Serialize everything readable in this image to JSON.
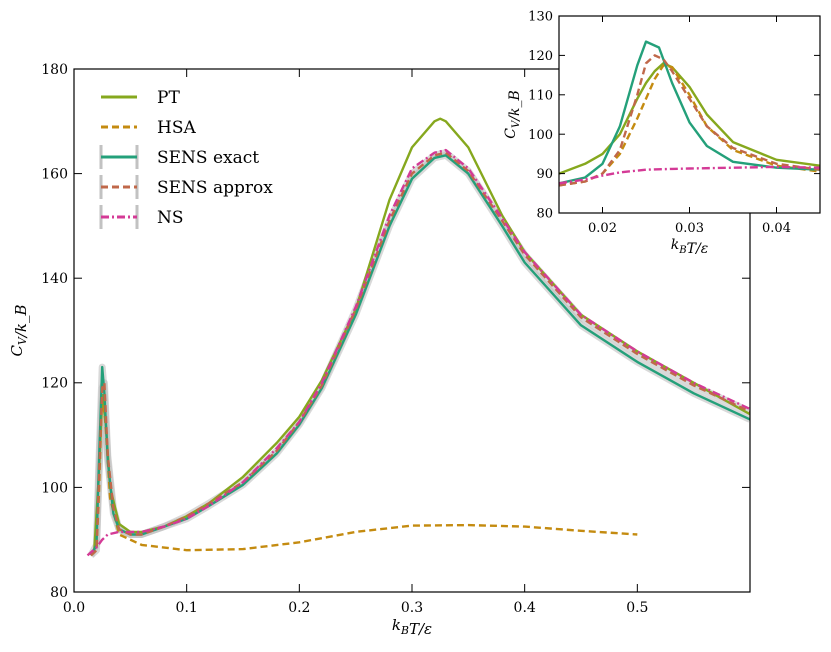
{
  "chart_data": [
    {
      "type": "line",
      "panel": "main",
      "xlabel": "k_B T/ε",
      "ylabel": "C_V/k_B",
      "xlim": [
        0.0,
        0.6
      ],
      "ylim": [
        80,
        180
      ],
      "xticks": [
        0.0,
        0.1,
        0.2,
        0.3,
        0.4,
        0.5
      ],
      "xtick_labels": [
        "0.0",
        "0.1",
        "0.2",
        "0.3",
        "0.4",
        "0.5"
      ],
      "yticks": [
        80,
        100,
        120,
        140,
        160,
        180
      ],
      "ytick_labels": [
        "80",
        "100",
        "120",
        "140",
        "160",
        "180"
      ],
      "grid": false,
      "legend_position": "top-left",
      "series": [
        {
          "name": "PT",
          "color": "#86a81e",
          "style": "solid",
          "x": [
            0.018,
            0.022,
            0.025,
            0.028,
            0.032,
            0.04,
            0.05,
            0.06,
            0.08,
            0.1,
            0.12,
            0.15,
            0.18,
            0.2,
            0.22,
            0.25,
            0.28,
            0.3,
            0.32,
            0.325,
            0.33,
            0.35,
            0.38,
            0.4,
            0.45,
            0.5,
            0.55,
            0.6
          ],
          "y": [
            88,
            102,
            117,
            113,
            100,
            93,
            91.5,
            91.5,
            92.5,
            94.5,
            97,
            102,
            108.5,
            113.5,
            120.5,
            134,
            155,
            165,
            170,
            170.5,
            170,
            165,
            152,
            145,
            133,
            126,
            120,
            114
          ]
        },
        {
          "name": "HSA",
          "color": "#c48b10",
          "style": "dashed",
          "x": [
            0.015,
            0.02,
            0.022,
            0.025,
            0.028,
            0.032,
            0.04,
            0.06,
            0.1,
            0.15,
            0.2,
            0.25,
            0.3,
            0.35,
            0.4,
            0.45,
            0.5
          ],
          "y": [
            87,
            88,
            98,
            119,
            112,
            98,
            91,
            89,
            88,
            88.2,
            89.5,
            91.5,
            92.7,
            92.8,
            92.5,
            91.7,
            91
          ]
        },
        {
          "name": "SENS exact",
          "color": "#24a07a",
          "style": "solid",
          "x": [
            0.015,
            0.02,
            0.022,
            0.025,
            0.027,
            0.03,
            0.035,
            0.04,
            0.05,
            0.06,
            0.08,
            0.1,
            0.12,
            0.15,
            0.18,
            0.2,
            0.22,
            0.25,
            0.28,
            0.3,
            0.32,
            0.33,
            0.35,
            0.38,
            0.4,
            0.45,
            0.5,
            0.55,
            0.6
          ],
          "y": [
            87,
            89,
            104,
            123,
            118,
            105,
            95,
            92,
            91,
            91,
            92.5,
            94,
            96.5,
            100.5,
            106.5,
            112,
            119,
            133,
            150,
            159,
            163,
            163.5,
            160,
            150,
            143,
            131,
            124,
            118,
            113
          ]
        },
        {
          "name": "SENS approx",
          "color": "#c0684a",
          "style": "dashed",
          "x": [
            0.015,
            0.02,
            0.022,
            0.025,
            0.027,
            0.03,
            0.035,
            0.04,
            0.05,
            0.06,
            0.08,
            0.1,
            0.12,
            0.15,
            0.18,
            0.2,
            0.22,
            0.25,
            0.28,
            0.3,
            0.32,
            0.33,
            0.35,
            0.38,
            0.4,
            0.45,
            0.5,
            0.55,
            0.6
          ],
          "y": [
            87,
            88,
            101,
            119,
            120,
            106,
            96,
            92,
            91,
            91,
            92.5,
            94.5,
            97,
            101,
            107,
            112.5,
            119.5,
            134,
            151,
            160,
            163.5,
            164,
            160.5,
            151,
            144.5,
            132.5,
            125.5,
            119.5,
            114.5
          ]
        },
        {
          "name": "NS",
          "color": "#d43a96",
          "style": "dashdot",
          "x": [
            0.012,
            0.02,
            0.025,
            0.03,
            0.04,
            0.05,
            0.06,
            0.08,
            0.1,
            0.12,
            0.15,
            0.18,
            0.2,
            0.22,
            0.25,
            0.28,
            0.3,
            0.32,
            0.33,
            0.35,
            0.38,
            0.4,
            0.45,
            0.5,
            0.55,
            0.6
          ],
          "y": [
            87,
            88.5,
            90,
            91,
            91.5,
            91.5,
            91.5,
            92.5,
            94,
            96.5,
            101,
            107.5,
            112.5,
            120,
            134.5,
            152,
            161,
            164,
            164.5,
            161,
            151.5,
            145,
            133,
            126,
            120,
            115
          ]
        }
      ]
    },
    {
      "type": "line",
      "panel": "inset",
      "xlabel": "k_B T/ε",
      "ylabel": "C_V/k_B",
      "xlim": [
        0.015,
        0.045
      ],
      "ylim": [
        80,
        130
      ],
      "xticks": [
        0.02,
        0.03,
        0.04
      ],
      "xtick_labels": [
        "0.02",
        "0.03",
        "0.04"
      ],
      "yticks": [
        80,
        90,
        100,
        110,
        120,
        130
      ],
      "ytick_labels": [
        "80",
        "90",
        "100",
        "110",
        "120",
        "130"
      ],
      "grid": false,
      "series": [
        {
          "name": "PT",
          "color": "#86a81e",
          "style": "solid",
          "x": [
            0.015,
            0.018,
            0.02,
            0.022,
            0.024,
            0.025,
            0.026,
            0.027,
            0.028,
            0.03,
            0.032,
            0.035,
            0.04,
            0.045
          ],
          "y": [
            90,
            92.5,
            95,
            100,
            109,
            113,
            116,
            118,
            117,
            112,
            105,
            98,
            93.5,
            92
          ]
        },
        {
          "name": "HSA",
          "color": "#c48b10",
          "style": "dashed",
          "x": [
            0.015,
            0.018,
            0.02,
            0.022,
            0.024,
            0.026,
            0.027,
            0.028,
            0.03,
            0.032,
            0.035,
            0.04,
            0.045
          ],
          "y": [
            87,
            88,
            90,
            95,
            104,
            114,
            117.5,
            117,
            110,
            102,
            96,
            92,
            90.5
          ]
        },
        {
          "name": "SENS exact",
          "color": "#24a07a",
          "style": "solid",
          "x": [
            0.015,
            0.018,
            0.02,
            0.022,
            0.024,
            0.025,
            0.0265,
            0.028,
            0.03,
            0.032,
            0.035,
            0.04,
            0.045
          ],
          "y": [
            87.5,
            89,
            92.5,
            102,
            117.5,
            123.5,
            122,
            113,
            103,
            97,
            93,
            91.5,
            91
          ]
        },
        {
          "name": "SENS approx",
          "color": "#c0684a",
          "style": "dashed",
          "x": [
            0.015,
            0.018,
            0.02,
            0.022,
            0.024,
            0.025,
            0.026,
            0.027,
            0.028,
            0.03,
            0.032,
            0.035,
            0.04,
            0.045
          ],
          "y": [
            87,
            88,
            90,
            96,
            110,
            118,
            120,
            119,
            116,
            109,
            102,
            96.5,
            92.5,
            91
          ]
        },
        {
          "name": "NS",
          "color": "#d43a96",
          "style": "dashdot",
          "x": [
            0.015,
            0.018,
            0.02,
            0.022,
            0.025,
            0.028,
            0.03,
            0.035,
            0.04,
            0.045
          ],
          "y": [
            87.5,
            88.5,
            89.5,
            90.3,
            91,
            91.2,
            91.3,
            91.5,
            91.7,
            91.5
          ]
        }
      ]
    }
  ]
}
